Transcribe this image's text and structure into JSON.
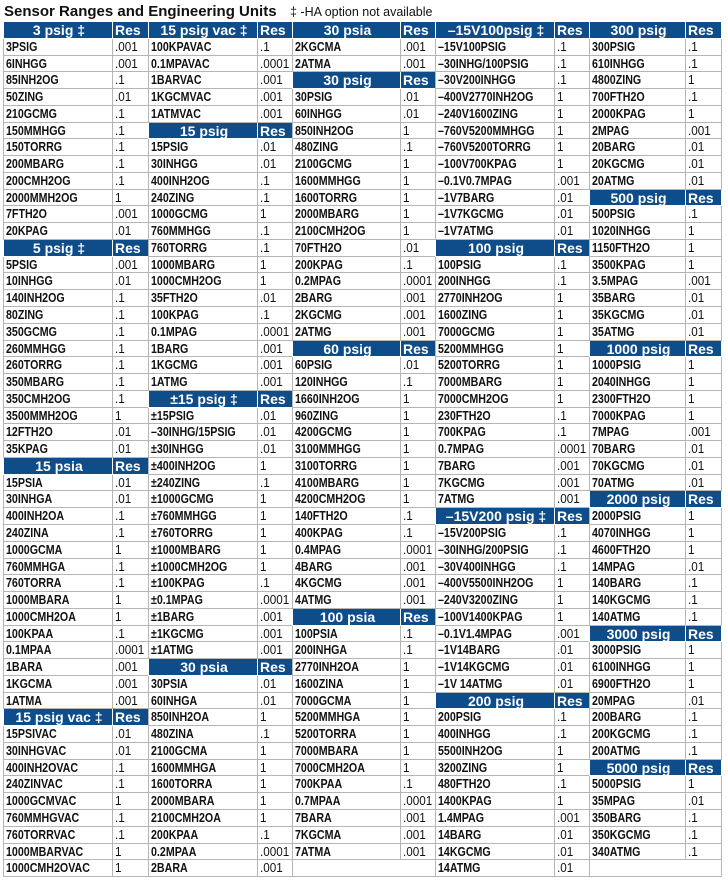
{
  "title": "Sensor Ranges and Engineering Units",
  "note": "‡ -HA option not available",
  "colors": {
    "header_bg": "#0f4c8a",
    "header_text": "#ffffff",
    "grid": "#b5b5b5"
  },
  "columns": [
    [
      {
        "h": 1,
        "n": "3 psig ‡",
        "r": "Res"
      },
      {
        "n": "3PSIG",
        "r": ".001"
      },
      {
        "n": "6INHGG",
        "r": ".001"
      },
      {
        "n": "85INH2OG",
        "r": ".1"
      },
      {
        "n": "50ZING",
        "r": ".01"
      },
      {
        "n": "210GCMG",
        "r": ".1"
      },
      {
        "n": "150MMHGG",
        "r": ".1"
      },
      {
        "n": "150TORRG",
        "r": ".1"
      },
      {
        "n": "200MBARG",
        "r": ".1"
      },
      {
        "n": "200CMH2OG",
        "r": ".1"
      },
      {
        "n": "2000MMH2OG",
        "r": "1"
      },
      {
        "n": "7FTH2O",
        "r": ".001"
      },
      {
        "n": "20KPAG",
        "r": ".01"
      },
      {
        "h": 1,
        "n": "5 psig ‡",
        "r": "Res"
      },
      {
        "n": "5PSIG",
        "r": ".001"
      },
      {
        "n": "10INHGG",
        "r": ".01"
      },
      {
        "n": "140INH2OG",
        "r": ".1"
      },
      {
        "n": "80ZING",
        "r": ".1"
      },
      {
        "n": "350GCMG",
        "r": ".1"
      },
      {
        "n": "260MMHGG",
        "r": ".1"
      },
      {
        "n": "260TORRG",
        "r": ".1"
      },
      {
        "n": "350MBARG",
        "r": ".1"
      },
      {
        "n": "350CMH2OG",
        "r": ".1"
      },
      {
        "n": "3500MMH2OG",
        "r": "1"
      },
      {
        "n": "12FTH2O",
        "r": ".01"
      },
      {
        "n": "35KPAG",
        "r": ".01"
      },
      {
        "h": 1,
        "n": "15 psia",
        "r": "Res"
      },
      {
        "n": "15PSIA",
        "r": ".01"
      },
      {
        "n": "30INHGA",
        "r": ".01"
      },
      {
        "n": "400INH2OA",
        "r": ".1"
      },
      {
        "n": "240ZINA",
        "r": ".1"
      },
      {
        "n": "1000GCMA",
        "r": "1"
      },
      {
        "n": "760MMHGA",
        "r": ".1"
      },
      {
        "n": "760TORRA",
        "r": ".1"
      },
      {
        "n": "1000MBARA",
        "r": "1"
      },
      {
        "n": "1000CMH2OA",
        "r": "1"
      },
      {
        "n": "100KPAA",
        "r": ".1"
      },
      {
        "n": "0.1MPAA",
        "r": ".0001"
      },
      {
        "n": "1BARA",
        "r": ".001"
      },
      {
        "n": "1KGCMA",
        "r": ".001"
      },
      {
        "n": "1ATMA",
        "r": ".001"
      },
      {
        "h": 1,
        "n": "15 psig vac ‡",
        "r": "Res"
      },
      {
        "n": "15PSIVAC",
        "r": ".01"
      },
      {
        "n": "30INHGVAC",
        "r": ".01"
      },
      {
        "n": "400INH2OVAC",
        "r": ".1"
      },
      {
        "n": "240ZINVAC",
        "r": ".1"
      },
      {
        "n": "1000GCMVAC",
        "r": "1"
      },
      {
        "n": "760MMHGVAC",
        "r": ".1"
      },
      {
        "n": "760TORRVAC",
        "r": ".1"
      },
      {
        "n": "1000MBARVAC",
        "r": "1"
      },
      {
        "n": "1000CMH2OVAC",
        "r": "1"
      }
    ],
    [
      {
        "h": 1,
        "n": "15 psig vac ‡",
        "r": "Res"
      },
      {
        "n": "100KPAVAC",
        "r": ".1"
      },
      {
        "n": "0.1MPAVAC",
        "r": ".0001"
      },
      {
        "n": "1BARVAC",
        "r": ".001"
      },
      {
        "n": "1KGCMVAC",
        "r": ".001"
      },
      {
        "n": "1ATMVAC",
        "r": ".001"
      },
      {
        "h": 1,
        "n": "15 psig",
        "r": "Res"
      },
      {
        "n": "15PSIG",
        "r": ".01"
      },
      {
        "n": "30INHGG",
        "r": ".01"
      },
      {
        "n": "400INH2OG",
        "r": ".1"
      },
      {
        "n": "240ZING",
        "r": ".1"
      },
      {
        "n": "1000GCMG",
        "r": "1"
      },
      {
        "n": "760MMHGG",
        "r": ".1"
      },
      {
        "n": "760TORRG",
        "r": ".1"
      },
      {
        "n": "1000MBARG",
        "r": "1"
      },
      {
        "n": "1000CMH2OG",
        "r": "1"
      },
      {
        "n": "35FTH2O",
        "r": ".01"
      },
      {
        "n": "100KPAG",
        "r": ".1"
      },
      {
        "n": "0.1MPAG",
        "r": ".0001"
      },
      {
        "n": "1BARG",
        "r": ".001"
      },
      {
        "n": "1KGCMG",
        "r": ".001"
      },
      {
        "n": "1ATMG",
        "r": ".001"
      },
      {
        "h": 1,
        "n": "±15 psig ‡",
        "r": "Res"
      },
      {
        "n": "±15PSIG",
        "r": ".01"
      },
      {
        "n": "–30INHG/15PSIG",
        "r": ".01"
      },
      {
        "n": "±30INHGG",
        "r": ".01"
      },
      {
        "n": "±400INH2OG",
        "r": "1"
      },
      {
        "n": "±240ZING",
        "r": ".1"
      },
      {
        "n": "±1000GCMG",
        "r": "1"
      },
      {
        "n": "±760MMHGG",
        "r": "1"
      },
      {
        "n": "±760TORRG",
        "r": "1"
      },
      {
        "n": "±1000MBARG",
        "r": "1"
      },
      {
        "n": "±1000CMH2OG",
        "r": "1"
      },
      {
        "n": "±100KPAG",
        "r": ".1"
      },
      {
        "n": "±0.1MPAG",
        "r": ".0001"
      },
      {
        "n": "±1BARG",
        "r": ".001"
      },
      {
        "n": "±1KGCMG",
        "r": ".001"
      },
      {
        "n": "±1ATMG",
        "r": ".001"
      },
      {
        "h": 1,
        "n": "30 psia",
        "r": "Res"
      },
      {
        "n": "30PSIA",
        "r": ".01"
      },
      {
        "n": "60INHGA",
        "r": ".01"
      },
      {
        "n": "850INH2OA",
        "r": "1"
      },
      {
        "n": "480ZINA",
        "r": ".1"
      },
      {
        "n": "2100GCMA",
        "r": "1"
      },
      {
        "n": "1600MMHGA",
        "r": "1"
      },
      {
        "n": "1600TORRA",
        "r": "1"
      },
      {
        "n": "2000MBARA",
        "r": "1"
      },
      {
        "n": "2100CMH2OA",
        "r": "1"
      },
      {
        "n": "200KPAA",
        "r": ".1"
      },
      {
        "n": "0.2MPAA",
        "r": ".0001"
      },
      {
        "n": "2BARA",
        "r": ".001"
      }
    ],
    [
      {
        "h": 1,
        "n": "30 psia",
        "r": "Res"
      },
      {
        "n": "2KGCMA",
        "r": ".001"
      },
      {
        "n": "2ATMA",
        "r": ".001"
      },
      {
        "h": 1,
        "n": "30 psig",
        "r": "Res"
      },
      {
        "n": "30PSIG",
        "r": ".01"
      },
      {
        "n": "60INHGG",
        "r": ".01"
      },
      {
        "n": "850INH2OG",
        "r": "1"
      },
      {
        "n": "480ZING",
        "r": ".1"
      },
      {
        "n": "2100GCMG",
        "r": "1"
      },
      {
        "n": "1600MMHGG",
        "r": "1"
      },
      {
        "n": "1600TORRG",
        "r": "1"
      },
      {
        "n": "2000MBARG",
        "r": "1"
      },
      {
        "n": "2100CMH2OG",
        "r": "1"
      },
      {
        "n": "70FTH2O",
        "r": ".01"
      },
      {
        "n": "200KPAG",
        "r": ".1"
      },
      {
        "n": "0.2MPAG",
        "r": ".0001"
      },
      {
        "n": "2BARG",
        "r": ".001"
      },
      {
        "n": "2KGCMG",
        "r": ".001"
      },
      {
        "n": "2ATMG",
        "r": ".001"
      },
      {
        "h": 1,
        "n": "60 psig",
        "r": "Res"
      },
      {
        "n": "60PSIG",
        "r": ".01"
      },
      {
        "n": "120INHGG",
        "r": ".1"
      },
      {
        "n": "1660INH2OG",
        "r": "1"
      },
      {
        "n": "960ZING",
        "r": "1"
      },
      {
        "n": "4200GCMG",
        "r": "1"
      },
      {
        "n": "3100MMHGG",
        "r": "1"
      },
      {
        "n": "3100TORRG",
        "r": "1"
      },
      {
        "n": "4100MBARG",
        "r": "1"
      },
      {
        "n": "4200CMH2OG",
        "r": "1"
      },
      {
        "n": "140FTH2O",
        "r": ".1"
      },
      {
        "n": "400KPAG",
        "r": ".1"
      },
      {
        "n": "0.4MPAG",
        "r": ".0001"
      },
      {
        "n": "4BARG",
        "r": ".001"
      },
      {
        "n": "4KGCMG",
        "r": ".001"
      },
      {
        "n": "4ATMG",
        "r": ".001"
      },
      {
        "h": 1,
        "n": "100 psia",
        "r": "Res"
      },
      {
        "n": "100PSIA",
        "r": ".1"
      },
      {
        "n": "200INHGA",
        "r": ".1"
      },
      {
        "n": "2770INH2OA",
        "r": "1"
      },
      {
        "n": "1600ZINA",
        "r": "1"
      },
      {
        "n": "7000GCMA",
        "r": "1"
      },
      {
        "n": "5200MMHGA",
        "r": "1"
      },
      {
        "n": "5200TORRA",
        "r": "1"
      },
      {
        "n": "7000MBARA",
        "r": "1"
      },
      {
        "n": "7000CMH2OA",
        "r": "1"
      },
      {
        "n": "700KPAA",
        "r": ".1"
      },
      {
        "n": "0.7MPAA",
        "r": ".0001"
      },
      {
        "n": "7BARA",
        "r": ".001"
      },
      {
        "n": "7KGCMA",
        "r": ".001"
      },
      {
        "n": "7ATMA",
        "r": ".001"
      },
      {
        "e": 1,
        "n": "",
        "r": ""
      }
    ],
    [
      {
        "h": 1,
        "n": "–15V100psig ‡",
        "r": "Res"
      },
      {
        "n": "–15V100PSIG",
        "r": ".1"
      },
      {
        "n": "–30INHG/100PSIG",
        "r": ".1"
      },
      {
        "n": "–30V200INHGG",
        "r": ".1"
      },
      {
        "n": "–400V2770INH2OG",
        "r": "1"
      },
      {
        "n": "–240V1600ZING",
        "r": "1"
      },
      {
        "n": "–760V5200MMHGG",
        "r": "1"
      },
      {
        "n": "–760V5200TORRG",
        "r": "1"
      },
      {
        "n": "–100V700KPAG",
        "r": "1"
      },
      {
        "n": "–0.1V0.7MPAG",
        "r": ".001"
      },
      {
        "n": "–1V7BARG",
        "r": ".01"
      },
      {
        "n": "–1V7KGCMG",
        "r": ".01"
      },
      {
        "n": "–1V7ATMG",
        "r": ".01"
      },
      {
        "h": 1,
        "n": "100 psig",
        "r": "Res"
      },
      {
        "n": "100PSIG",
        "r": ".1"
      },
      {
        "n": "200INHGG",
        "r": ".1"
      },
      {
        "n": "2770INH2OG",
        "r": "1"
      },
      {
        "n": "1600ZING",
        "r": "1"
      },
      {
        "n": "7000GCMG",
        "r": "1"
      },
      {
        "n": "5200MMHGG",
        "r": "1"
      },
      {
        "n": "5200TORRG",
        "r": "1"
      },
      {
        "n": "7000MBARG",
        "r": "1"
      },
      {
        "n": "7000CMH2OG",
        "r": "1"
      },
      {
        "n": "230FTH2O",
        "r": ".1"
      },
      {
        "n": "700KPAG",
        "r": ".1"
      },
      {
        "n": "0.7MPAG",
        "r": ".0001"
      },
      {
        "n": "7BARG",
        "r": ".001"
      },
      {
        "n": "7KGCMG",
        "r": ".001"
      },
      {
        "n": "7ATMG",
        "r": ".001"
      },
      {
        "h": 1,
        "n": "–15V200 psig ‡",
        "r": "Res"
      },
      {
        "n": "–15V200PSIG",
        "r": ".1"
      },
      {
        "n": "–30INHG/200PSIG",
        "r": ".1"
      },
      {
        "n": "–30V400INHGG",
        "r": ".1"
      },
      {
        "n": "–400V5500INH2OG",
        "r": "1"
      },
      {
        "n": "–240V3200ZING",
        "r": "1"
      },
      {
        "n": "–100V1400KPAG",
        "r": "1"
      },
      {
        "n": "–0.1V1.4MPAG",
        "r": ".001"
      },
      {
        "n": "–1V14BARG",
        "r": ".01"
      },
      {
        "n": "–1V14KGCMG",
        "r": ".01"
      },
      {
        "n": "–1V 14ATMG",
        "r": ".01"
      },
      {
        "h": 1,
        "n": "200 psig",
        "r": "Res"
      },
      {
        "n": "200PSIG",
        "r": ".1"
      },
      {
        "n": "400INHGG",
        "r": ".1"
      },
      {
        "n": "5500INH2OG",
        "r": "1"
      },
      {
        "n": "3200ZING",
        "r": "1"
      },
      {
        "n": "480FTH2O",
        "r": ".1"
      },
      {
        "n": "1400KPAG",
        "r": "1"
      },
      {
        "n": "1.4MPAG",
        "r": ".001"
      },
      {
        "n": "14BARG",
        "r": ".01"
      },
      {
        "n": "14KGCMG",
        "r": ".01"
      },
      {
        "n": "14ATMG",
        "r": ".01"
      }
    ],
    [
      {
        "h": 1,
        "n": "300 psig",
        "r": "Res"
      },
      {
        "n": "300PSIG",
        "r": ".1"
      },
      {
        "n": "610INHGG",
        "r": ".1"
      },
      {
        "n": "4800ZING",
        "r": "1"
      },
      {
        "n": "700FTH2O",
        "r": ".1"
      },
      {
        "n": "2000KPAG",
        "r": "1"
      },
      {
        "n": "2MPAG",
        "r": ".001"
      },
      {
        "n": "20BARG",
        "r": ".01"
      },
      {
        "n": "20KGCMG",
        "r": ".01"
      },
      {
        "n": "20ATMG",
        "r": ".01"
      },
      {
        "h": 1,
        "n": "500 psig",
        "r": "Res"
      },
      {
        "n": "500PSIG",
        "r": ".1"
      },
      {
        "n": "1020INHGG",
        "r": "1"
      },
      {
        "n": "1150FTH2O",
        "r": "1"
      },
      {
        "n": "3500KPAG",
        "r": "1"
      },
      {
        "n": "3.5MPAG",
        "r": ".001"
      },
      {
        "n": "35BARG",
        "r": ".01"
      },
      {
        "n": "35KGCMG",
        "r": ".01"
      },
      {
        "n": "35ATMG",
        "r": ".01"
      },
      {
        "h": 1,
        "n": "1000 psig",
        "r": "Res"
      },
      {
        "n": "1000PSIG",
        "r": "1"
      },
      {
        "n": "2040INHGG",
        "r": "1"
      },
      {
        "n": "2300FTH2O",
        "r": "1"
      },
      {
        "n": "7000KPAG",
        "r": "1"
      },
      {
        "n": "7MPAG",
        "r": ".001"
      },
      {
        "n": "70BARG",
        "r": ".01"
      },
      {
        "n": "70KGCMG",
        "r": ".01"
      },
      {
        "n": "70ATMG",
        "r": ".01"
      },
      {
        "h": 1,
        "n": "2000 psig",
        "r": "Res"
      },
      {
        "n": "2000PSIG",
        "r": "1"
      },
      {
        "n": "4070INHGG",
        "r": "1"
      },
      {
        "n": "4600FTH2O",
        "r": "1"
      },
      {
        "n": "14MPAG",
        "r": ".01"
      },
      {
        "n": "140BARG",
        "r": ".1"
      },
      {
        "n": "140KGCMG",
        "r": ".1"
      },
      {
        "n": "140ATMG",
        "r": ".1"
      },
      {
        "h": 1,
        "n": "3000 psig",
        "r": "Res"
      },
      {
        "n": "3000PSIG",
        "r": "1"
      },
      {
        "n": "6100INHGG",
        "r": "1"
      },
      {
        "n": "6900FTH2O",
        "r": "1"
      },
      {
        "n": "20MPAG",
        "r": ".01"
      },
      {
        "n": "200BARG",
        "r": ".1"
      },
      {
        "n": "200KGCMG",
        "r": ".1"
      },
      {
        "n": "200ATMG",
        "r": ".1"
      },
      {
        "h": 1,
        "n": "5000 psig",
        "r": "Res"
      },
      {
        "n": "5000PSIG",
        "r": "1"
      },
      {
        "n": "35MPAG",
        "r": ".01"
      },
      {
        "n": "350BARG",
        "r": ".1"
      },
      {
        "n": "350KGCMG",
        "r": ".1"
      },
      {
        "n": "340ATMG",
        "r": ".1"
      },
      {
        "e": 1,
        "n": "",
        "r": ""
      }
    ]
  ]
}
